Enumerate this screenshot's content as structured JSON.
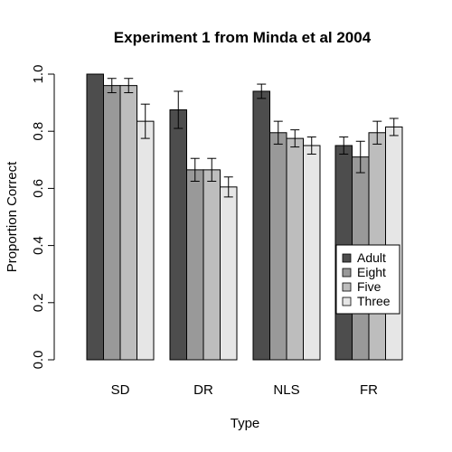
{
  "chart_data": {
    "type": "bar",
    "title": "Experiment 1 from Minda et al 2004",
    "xlabel": "Type",
    "ylabel": "Proportion Correct",
    "categories": [
      "SD",
      "DR",
      "NLS",
      "FR"
    ],
    "ylim": [
      0,
      1
    ],
    "yticks": [
      "0.0",
      "0.2",
      "0.4",
      "0.6",
      "0.8",
      "1.0"
    ],
    "grid": false,
    "legend_position": "right",
    "series": [
      {
        "name": "Adult",
        "color": "#4d4d4d",
        "values": [
          1.0,
          0.875,
          0.94,
          0.75
        ],
        "errors": [
          0.0,
          0.065,
          0.025,
          0.03
        ]
      },
      {
        "name": "Eight",
        "color": "#999999",
        "values": [
          0.96,
          0.665,
          0.795,
          0.71
        ],
        "errors": [
          0.025,
          0.04,
          0.04,
          0.055
        ]
      },
      {
        "name": "Five",
        "color": "#bdbdbd",
        "values": [
          0.96,
          0.665,
          0.775,
          0.795
        ],
        "errors": [
          0.025,
          0.04,
          0.03,
          0.04
        ]
      },
      {
        "name": "Three",
        "color": "#e6e6e6",
        "values": [
          0.835,
          0.605,
          0.75,
          0.815
        ],
        "errors": [
          0.06,
          0.035,
          0.03,
          0.03
        ]
      }
    ]
  }
}
